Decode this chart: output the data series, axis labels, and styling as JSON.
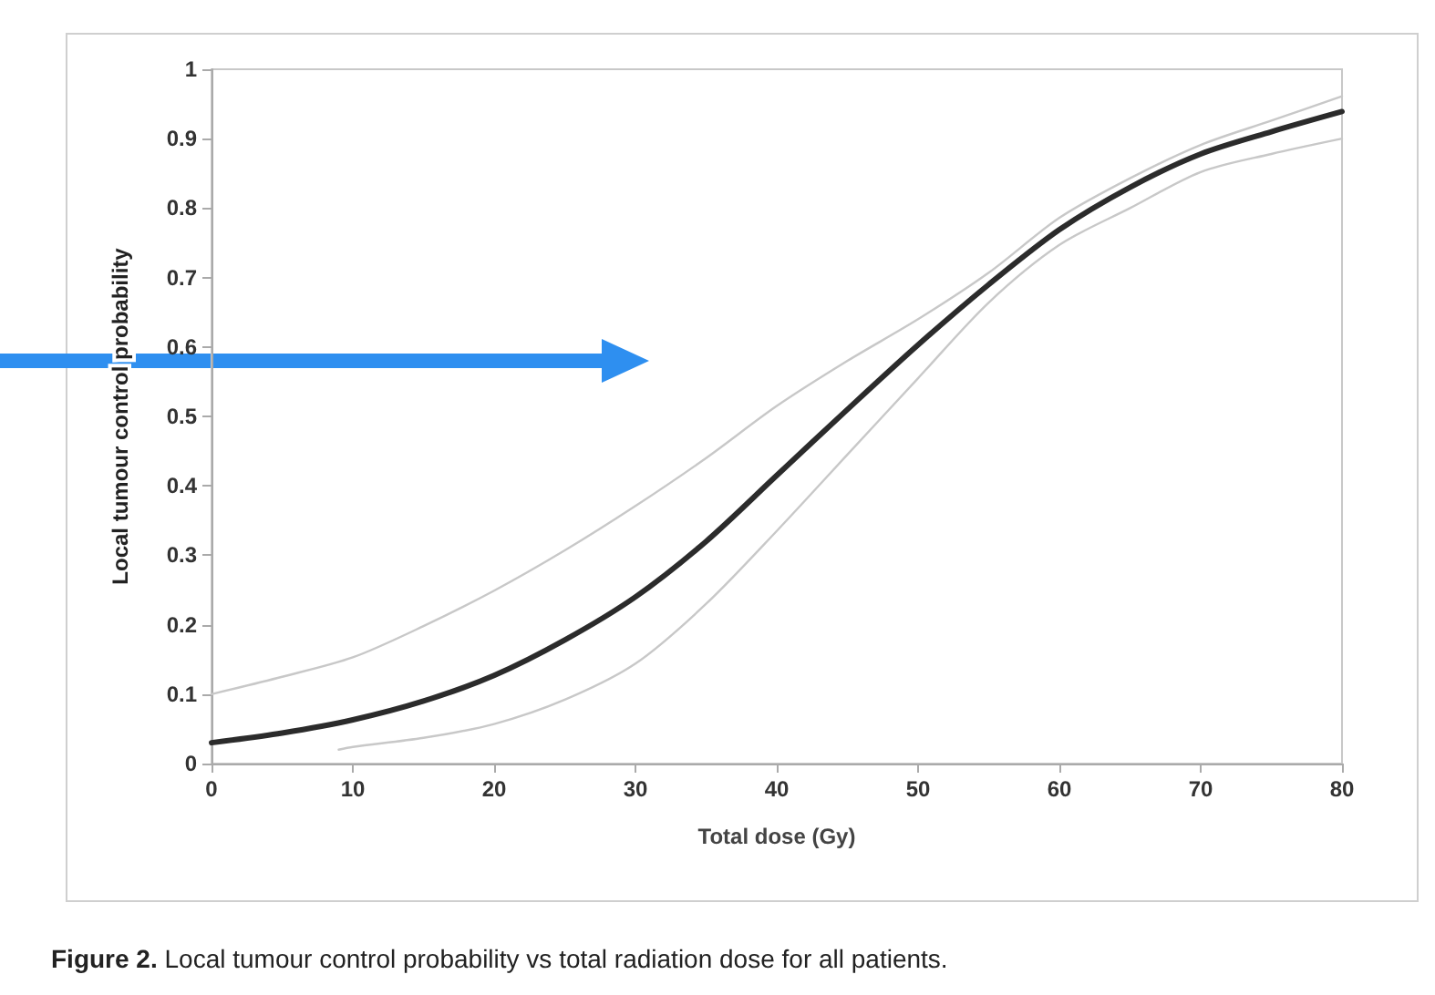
{
  "chart_data": {
    "type": "line",
    "xlabel": "Total dose (Gy)",
    "ylabel": "Local tumour control probability",
    "annotations": [
      "Figure 2. Local tumour control probability vs total radiation dose for all patients."
    ],
    "xlim": [
      0,
      80
    ],
    "xticks": [
      0,
      10,
      20,
      30,
      40,
      50,
      60,
      70,
      80
    ],
    "ylim": [
      0,
      1
    ],
    "yticks": [
      0,
      0.1,
      0.2,
      0.3,
      0.4,
      0.5,
      0.6,
      0.7,
      0.8,
      0.9,
      1
    ],
    "grid": false,
    "marker": "none",
    "line_style": "solid",
    "series": [
      {
        "color": "#2b2b2b",
        "x": [
          0,
          5,
          10,
          15,
          20,
          25,
          30,
          35,
          40,
          45,
          50,
          55,
          60,
          65,
          70,
          75,
          80
        ],
        "values": [
          0.03,
          0.044,
          0.063,
          0.09,
          0.127,
          0.178,
          0.24,
          0.32,
          0.415,
          0.51,
          0.603,
          0.69,
          0.769,
          0.83,
          0.878,
          0.91,
          0.939
        ]
      },
      {
        "color": "#c8c8c8",
        "x": [
          0,
          5,
          10,
          15,
          20,
          25,
          30,
          35,
          40,
          45,
          50,
          55,
          60,
          65,
          70,
          75,
          80
        ],
        "values": [
          0.1,
          0.125,
          0.153,
          0.198,
          0.249,
          0.307,
          0.371,
          0.44,
          0.515,
          0.58,
          0.64,
          0.707,
          0.786,
          0.843,
          0.891,
          0.926,
          0.961
        ]
      },
      {
        "color": "#c8c8c8",
        "x": [
          9,
          10,
          15,
          20,
          25,
          30,
          35,
          40,
          45,
          50,
          55,
          60,
          65,
          70,
          75,
          80
        ],
        "values": [
          0.02,
          0.024,
          0.037,
          0.057,
          0.092,
          0.144,
          0.23,
          0.335,
          0.445,
          0.555,
          0.664,
          0.747,
          0.8,
          0.852,
          0.878,
          0.9
        ]
      }
    ]
  }
}
